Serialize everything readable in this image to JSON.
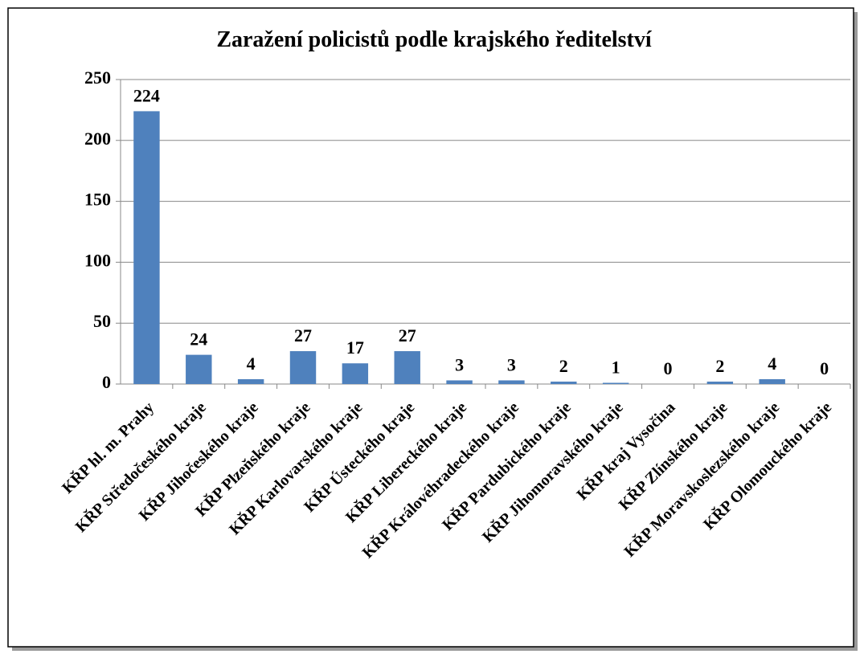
{
  "chart_data": {
    "type": "bar",
    "title": "Zaražení policistů podle krajského ředitelství",
    "categories": [
      "KŘP hl. m. Prahy",
      "KŘP Středočeského kraje",
      "KŘP Jihočeského kraje",
      "KŘP Plzeňského kraje",
      "KŘP Karlovarského kraje",
      "KŘP Ústeckého kraje",
      "KŘP Libereckého kraje",
      "KŘP Královéhradeckého kraje",
      "KŘP Pardubického kraje",
      "KŘP Jihomoravského kraje",
      "KŘP kraj Vysočina",
      "KŘP Zlínského kraje",
      "KŘP Moravskoslezského kraje",
      "KŘP Olomouckého kraje"
    ],
    "values": [
      224,
      24,
      4,
      27,
      17,
      27,
      3,
      3,
      2,
      1,
      0,
      2,
      4,
      0
    ],
    "color": "#4f81bd",
    "ylim": [
      0,
      250
    ],
    "yticks": [
      0,
      50,
      100,
      150,
      200,
      250
    ],
    "grid": true,
    "data_labels": true
  }
}
